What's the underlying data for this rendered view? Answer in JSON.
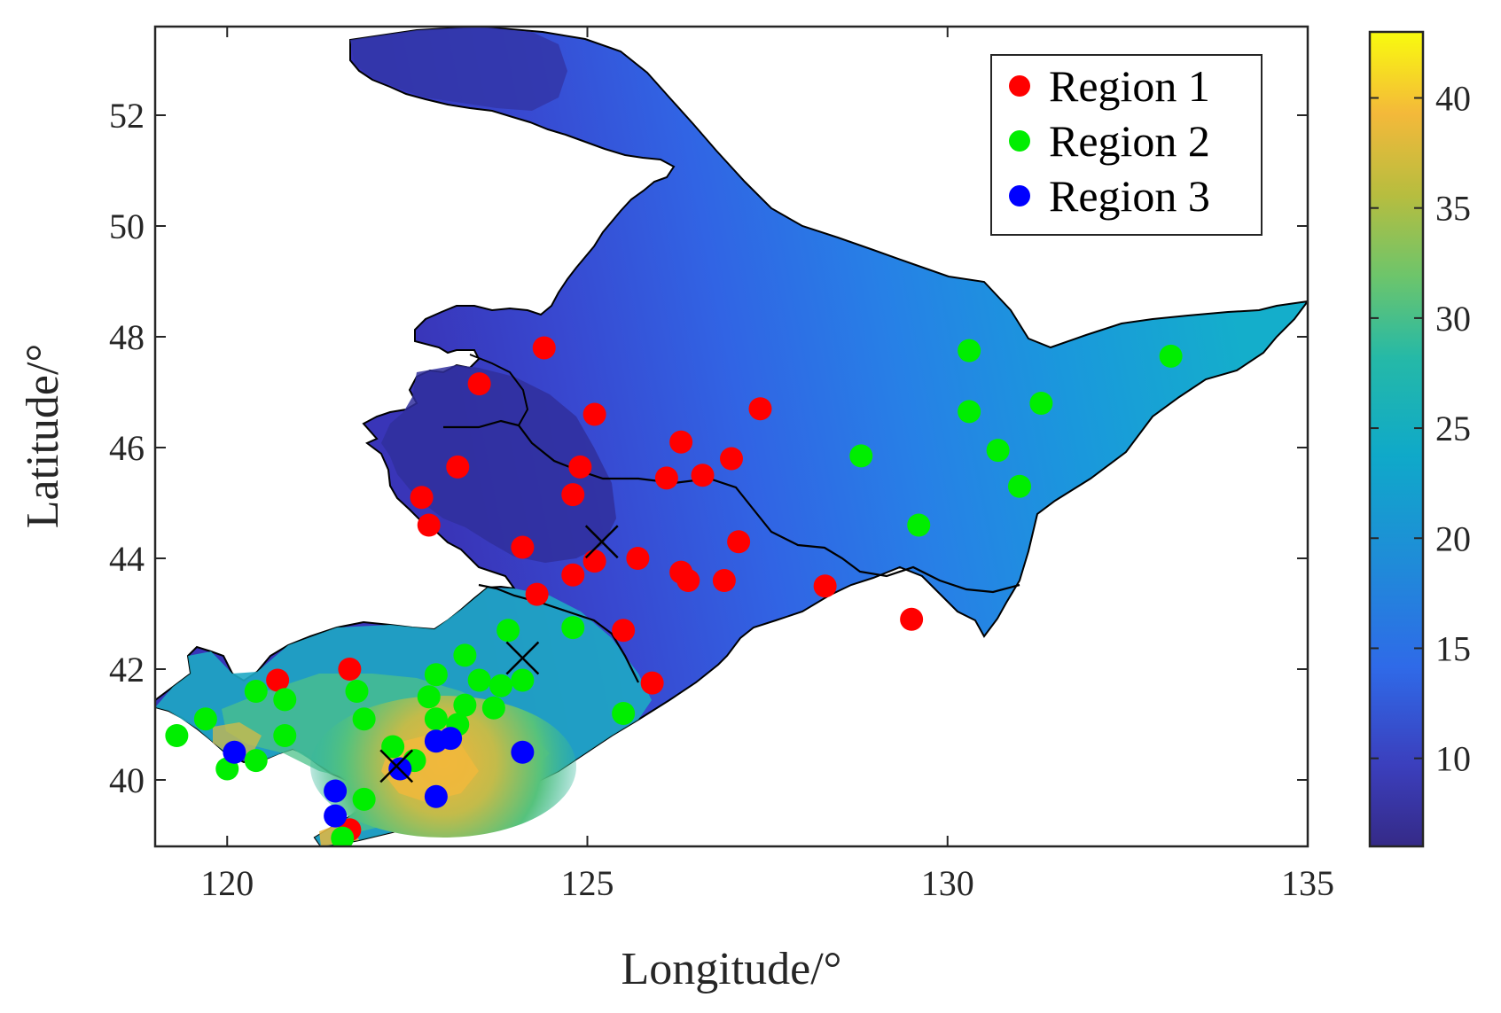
{
  "chart_data": {
    "type": "scatter",
    "xlabel": "Longitude/°",
    "ylabel": "Latitude/°",
    "xlim": [
      119,
      135
    ],
    "ylim": [
      38.8,
      53.6
    ],
    "xticks": [
      120,
      125,
      130,
      135
    ],
    "yticks": [
      40,
      42,
      44,
      46,
      48,
      50,
      52
    ],
    "grid": false,
    "legend_position": "top-right",
    "colorbar": {
      "range": [
        6,
        43
      ],
      "ticks": [
        10,
        15,
        20,
        25,
        30,
        35,
        40
      ],
      "colormap": "parula"
    },
    "series": [
      {
        "name": "Region 1",
        "color": "#ff0000",
        "points": [
          [
            124.4,
            47.8
          ],
          [
            123.5,
            47.15
          ],
          [
            125.1,
            46.6
          ],
          [
            126.3,
            46.1
          ],
          [
            123.2,
            45.65
          ],
          [
            124.9,
            45.65
          ],
          [
            127.0,
            45.8
          ],
          [
            126.1,
            45.45
          ],
          [
            126.6,
            45.5
          ],
          [
            127.4,
            46.7
          ],
          [
            122.7,
            45.1
          ],
          [
            124.8,
            45.15
          ],
          [
            122.8,
            44.6
          ],
          [
            124.1,
            44.2
          ],
          [
            125.1,
            43.95
          ],
          [
            125.7,
            44.0
          ],
          [
            127.1,
            44.3
          ],
          [
            124.8,
            43.7
          ],
          [
            126.3,
            43.75
          ],
          [
            126.4,
            43.6
          ],
          [
            126.9,
            43.6
          ],
          [
            124.3,
            43.35
          ],
          [
            128.3,
            43.5
          ],
          [
            129.5,
            42.9
          ],
          [
            125.5,
            42.7
          ],
          [
            125.9,
            41.75
          ],
          [
            120.7,
            41.8
          ],
          [
            121.7,
            42.0
          ],
          [
            121.7,
            39.1
          ]
        ]
      },
      {
        "name": "Region 2",
        "color": "#00ee00",
        "points": [
          [
            130.3,
            47.75
          ],
          [
            133.1,
            47.65
          ],
          [
            130.3,
            46.65
          ],
          [
            131.3,
            46.8
          ],
          [
            128.8,
            45.85
          ],
          [
            130.7,
            45.95
          ],
          [
            131.0,
            45.3
          ],
          [
            129.6,
            44.6
          ],
          [
            123.9,
            42.7
          ],
          [
            124.8,
            42.75
          ],
          [
            123.3,
            42.25
          ],
          [
            122.9,
            41.9
          ],
          [
            123.5,
            41.8
          ],
          [
            123.8,
            41.7
          ],
          [
            124.1,
            41.8
          ],
          [
            122.8,
            41.5
          ],
          [
            123.3,
            41.35
          ],
          [
            123.7,
            41.3
          ],
          [
            122.9,
            41.1
          ],
          [
            123.2,
            41.0
          ],
          [
            121.8,
            41.6
          ],
          [
            120.4,
            41.6
          ],
          [
            120.8,
            41.45
          ],
          [
            119.7,
            41.1
          ],
          [
            121.9,
            41.1
          ],
          [
            125.5,
            41.2
          ],
          [
            119.3,
            40.8
          ],
          [
            120.8,
            40.8
          ],
          [
            122.3,
            40.6
          ],
          [
            122.6,
            40.35
          ],
          [
            120.4,
            40.35
          ],
          [
            120.0,
            40.2
          ],
          [
            121.9,
            39.65
          ],
          [
            121.6,
            38.95
          ]
        ]
      },
      {
        "name": "Region 3",
        "color": "#0000ff",
        "points": [
          [
            120.1,
            40.5
          ],
          [
            122.9,
            40.7
          ],
          [
            123.1,
            40.75
          ],
          [
            124.1,
            40.5
          ],
          [
            122.4,
            40.2
          ],
          [
            121.5,
            39.8
          ],
          [
            122.9,
            39.7
          ],
          [
            121.5,
            39.35
          ]
        ]
      }
    ],
    "cluster_centers": [
      [
        125.2,
        44.3
      ],
      [
        124.1,
        42.2
      ],
      [
        122.35,
        40.25
      ]
    ]
  }
}
